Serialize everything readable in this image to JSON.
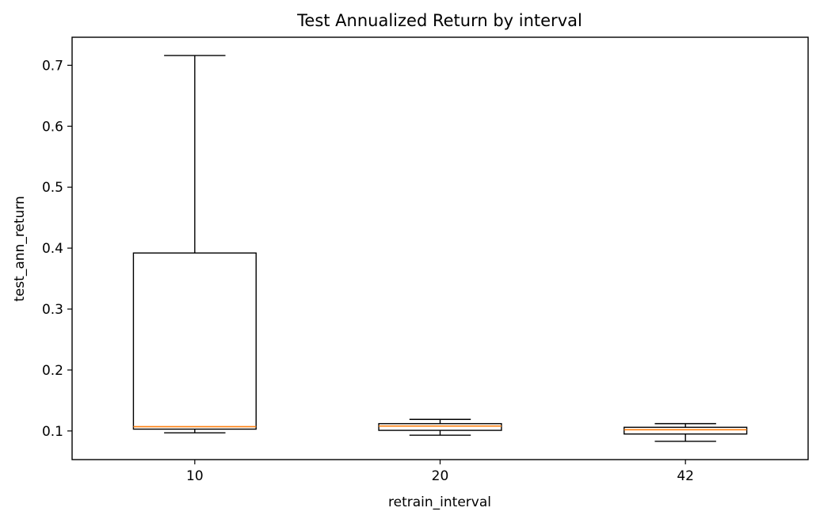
{
  "chart_data": {
    "type": "boxplot",
    "title": "Test Annualized Return by interval",
    "xlabel": "retrain_interval",
    "ylabel": "test_ann_return",
    "categories": [
      "10",
      "20",
      "42"
    ],
    "ylim": [
      0.053,
      0.746
    ],
    "yticks": [
      0.1,
      0.2,
      0.3,
      0.4,
      0.5,
      0.6,
      0.7
    ],
    "ytick_labels": [
      "0.1",
      "0.2",
      "0.3",
      "0.4",
      "0.5",
      "0.6",
      "0.7"
    ],
    "grid": false,
    "boxes": [
      {
        "category": "10",
        "whislo": 0.097,
        "q1": 0.103,
        "med": 0.107,
        "q3": 0.392,
        "whishi": 0.716
      },
      {
        "category": "20",
        "whislo": 0.093,
        "q1": 0.101,
        "med": 0.108,
        "q3": 0.112,
        "whishi": 0.119
      },
      {
        "category": "42",
        "whislo": 0.083,
        "q1": 0.095,
        "med": 0.102,
        "q3": 0.106,
        "whishi": 0.112
      }
    ],
    "colors": {
      "box": "#000000",
      "median": "#ff7f0e"
    }
  }
}
